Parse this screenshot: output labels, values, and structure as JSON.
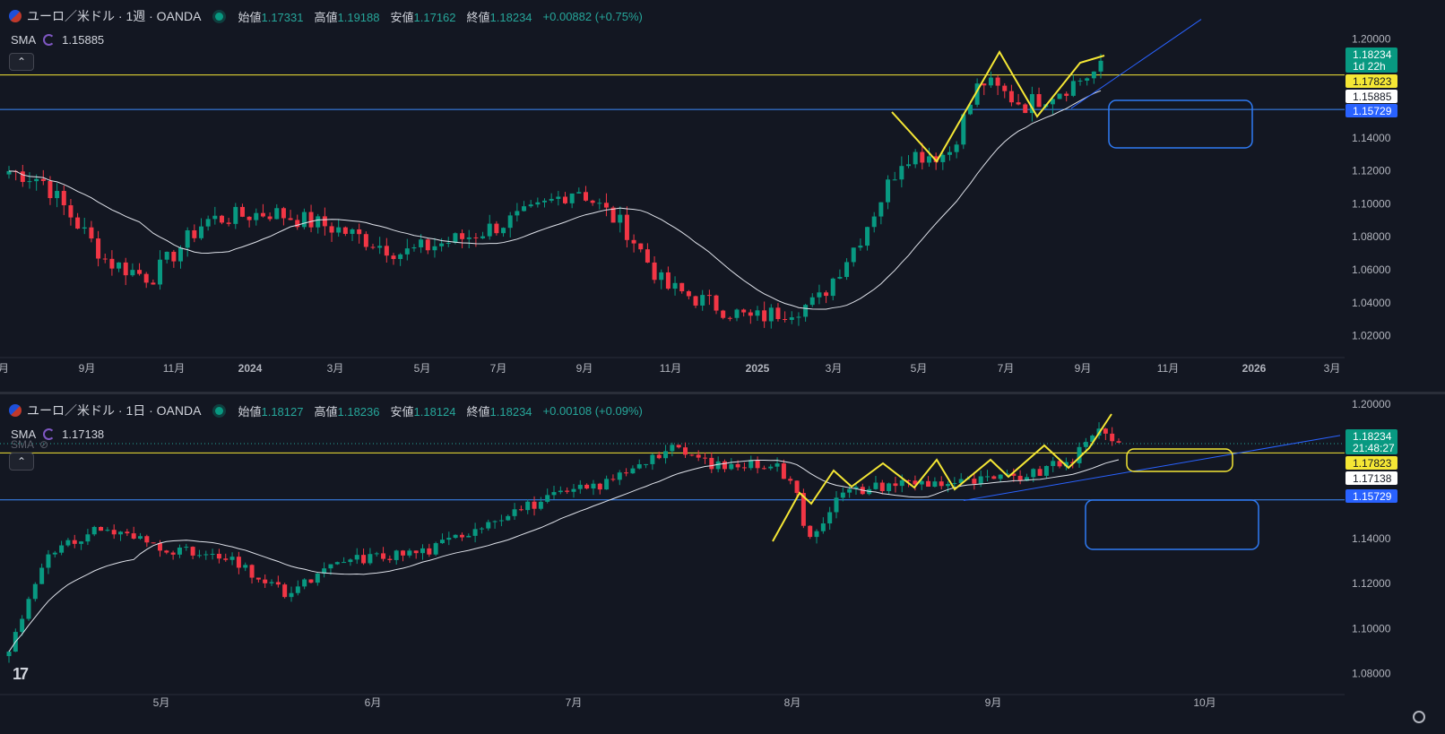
{
  "colors": {
    "bg": "#131722",
    "up": "#089981",
    "down": "#f23645",
    "sma": "#e0e3eb",
    "yellow": "#f5e735",
    "blue": "#1e6fe0",
    "text": "#d1d4dc",
    "axis": "#b2b5be"
  },
  "top_pane": {
    "title": "ユーロ／米ドル · 1週 · OANDA",
    "ohlc": [
      {
        "label": "始値",
        "value": "1.17331"
      },
      {
        "label": "高値",
        "value": "1.19188"
      },
      {
        "label": "安値",
        "value": "1.17162"
      },
      {
        "label": "終値",
        "value": "1.18234"
      },
      {
        "label": "",
        "value": "+0.00882 (+0.75%)"
      }
    ],
    "sma_label": "SMA",
    "sma_value": "1.15885",
    "y_ticks": [
      "1.20000",
      "1.14000",
      "1.12000",
      "1.10000",
      "1.08000",
      "1.06000",
      "1.04000",
      "1.02000"
    ],
    "price_tags": [
      {
        "text": "1.18234",
        "sub": "1d 22h",
        "kind": "last"
      },
      {
        "text": "1.17823",
        "kind": "yellow"
      },
      {
        "text": "1.15885",
        "kind": "white"
      },
      {
        "text": "1.15729",
        "kind": "blue"
      }
    ],
    "x_ticks": [
      "月",
      "9月",
      "11月",
      "2024",
      "3月",
      "5月",
      "7月",
      "9月",
      "11月",
      "2025",
      "3月",
      "5月",
      "7月",
      "9月",
      "11月",
      "2026",
      "3月"
    ]
  },
  "bottom_pane": {
    "title": "ユーロ／米ドル · 1日 · OANDA",
    "ohlc": [
      {
        "label": "始値",
        "value": "1.18127"
      },
      {
        "label": "高値",
        "value": "1.18236"
      },
      {
        "label": "安値",
        "value": "1.18124"
      },
      {
        "label": "終値",
        "value": "1.18234"
      },
      {
        "label": "",
        "value": "+0.00108 (+0.09%)"
      }
    ],
    "sma_label": "SMA",
    "sma_value": "1.17138",
    "sma2_label": "SMA",
    "y_ticks": [
      "1.20000",
      "1.14000",
      "1.12000",
      "1.10000",
      "1.08000"
    ],
    "price_tags": [
      {
        "text": "1.18234",
        "sub": "21:48:27",
        "kind": "last"
      },
      {
        "text": "1.17823",
        "kind": "yellow"
      },
      {
        "text": "1.17138",
        "kind": "white"
      },
      {
        "text": "1.15729",
        "kind": "blue"
      }
    ],
    "x_ticks": [
      "5月",
      "6月",
      "7月",
      "8月",
      "9月",
      "10月"
    ]
  },
  "chart_data": [
    {
      "type": "candlestick",
      "pane": "top",
      "timeframe": "1W",
      "y_range": [
        1.0105,
        1.2085
      ],
      "horizontal_lines": [
        1.17823,
        1.15729
      ],
      "last_price": 1.18234,
      "sma_last": 1.15885
    },
    {
      "type": "candlestick",
      "pane": "bottom",
      "timeframe": "1D",
      "y_range": [
        1.0726,
        1.2043
      ],
      "horizontal_lines": [
        1.17823,
        1.15729
      ],
      "last_price": 1.18234,
      "sma_last": 1.17138
    }
  ]
}
